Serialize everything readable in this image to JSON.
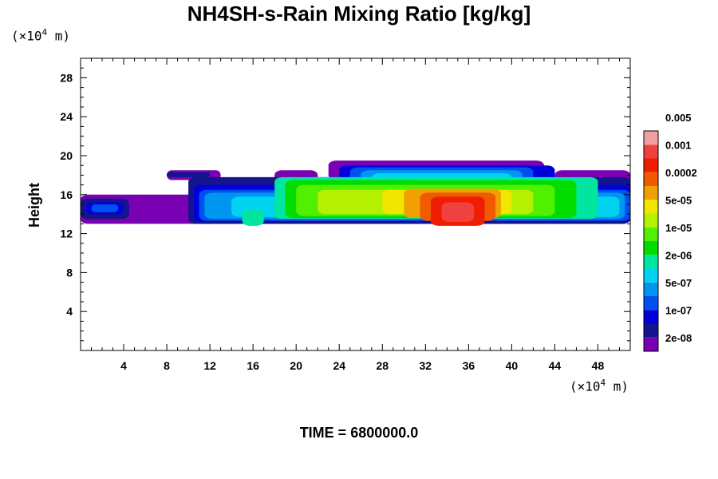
{
  "chart_data": {
    "type": "heatmap",
    "title": "NH4SH-s-Rain Mixing Ratio [kg/kg]",
    "ylabel": "Height",
    "xlabel": "",
    "x_unit": {
      "prefix": "(×10",
      "exp": "4",
      "suffix": " m)"
    },
    "y_unit": {
      "prefix": "(×10",
      "exp": "4",
      "suffix": " m)"
    },
    "xlim": [
      0,
      51
    ],
    "ylim": [
      0,
      30
    ],
    "x_ticks": [
      4,
      8,
      12,
      16,
      20,
      24,
      28,
      32,
      36,
      40,
      44,
      48
    ],
    "y_ticks": [
      4,
      8,
      12,
      16,
      20,
      24,
      28
    ],
    "colorbar": {
      "colors": [
        "#7a00b4",
        "#14148c",
        "#0000dc",
        "#0050f0",
        "#0096f0",
        "#00d2f0",
        "#00e6a0",
        "#00dc00",
        "#50f000",
        "#b4f000",
        "#f0e600",
        "#f0a000",
        "#f05a00",
        "#f01e00",
        "#f04040",
        "#f0a0a0"
      ],
      "labels": [
        "2e-08",
        "1e-07",
        "5e-07",
        "2e-06",
        "1e-05",
        "5e-05",
        "0.0002",
        "0.001",
        "0.005"
      ]
    },
    "bands": [
      {
        "color": "#7a00b4",
        "segments": [
          [
            0,
            51,
            13.0,
            16.0
          ],
          [
            8,
            13,
            17.5,
            18.5
          ],
          [
            18,
            22,
            17.0,
            18.5
          ],
          [
            23,
            43,
            17.5,
            19.5
          ],
          [
            44,
            51,
            17.0,
            18.5
          ]
        ]
      },
      {
        "color": "#14148c",
        "segments": [
          [
            0,
            4.5,
            13.5,
            15.6
          ],
          [
            8,
            12,
            17.8,
            18.3
          ],
          [
            10,
            51,
            13.0,
            17.8
          ]
        ]
      },
      {
        "color": "#0000dc",
        "segments": [
          [
            0.5,
            4,
            14.0,
            15.2
          ],
          [
            10.5,
            51,
            13.2,
            17.0
          ],
          [
            24,
            44,
            17.0,
            19.0
          ]
        ]
      },
      {
        "color": "#0050f0",
        "segments": [
          [
            1,
            3.5,
            14.2,
            15.0
          ],
          [
            11,
            51,
            13.3,
            16.5
          ],
          [
            25,
            42,
            16.5,
            18.8
          ]
        ]
      },
      {
        "color": "#0096f0",
        "segments": [
          [
            11.5,
            50.5,
            13.5,
            16.2
          ],
          [
            26,
            41,
            16.2,
            18.5
          ]
        ]
      },
      {
        "color": "#00d2f0",
        "segments": [
          [
            14,
            50,
            13.7,
            15.8
          ],
          [
            27,
            40,
            15.8,
            18.2
          ]
        ]
      },
      {
        "color": "#00e6a0",
        "segments": [
          [
            15,
            17,
            12.8,
            14.5
          ],
          [
            18,
            48,
            13.5,
            17.8
          ]
        ]
      },
      {
        "color": "#00dc00",
        "segments": [
          [
            19,
            46,
            13.6,
            17.5
          ]
        ]
      },
      {
        "color": "#50f000",
        "segments": [
          [
            20,
            44,
            13.8,
            17.0
          ]
        ]
      },
      {
        "color": "#b4f000",
        "segments": [
          [
            22,
            42,
            14.0,
            16.5
          ]
        ]
      },
      {
        "color": "#f0e600",
        "segments": [
          [
            28,
            40,
            14.0,
            16.5
          ]
        ]
      },
      {
        "color": "#f0a000",
        "segments": [
          [
            30,
            39,
            13.6,
            16.6
          ]
        ]
      },
      {
        "color": "#f05a00",
        "segments": [
          [
            31.5,
            38.5,
            13.3,
            16.2
          ]
        ]
      },
      {
        "color": "#f01e00",
        "segments": [
          [
            32.5,
            37.5,
            12.8,
            15.8
          ]
        ]
      },
      {
        "color": "#f04040",
        "segments": [
          [
            33.5,
            36.5,
            13.2,
            15.2
          ]
        ]
      }
    ]
  },
  "time_label": "TIME = 6800000.0"
}
